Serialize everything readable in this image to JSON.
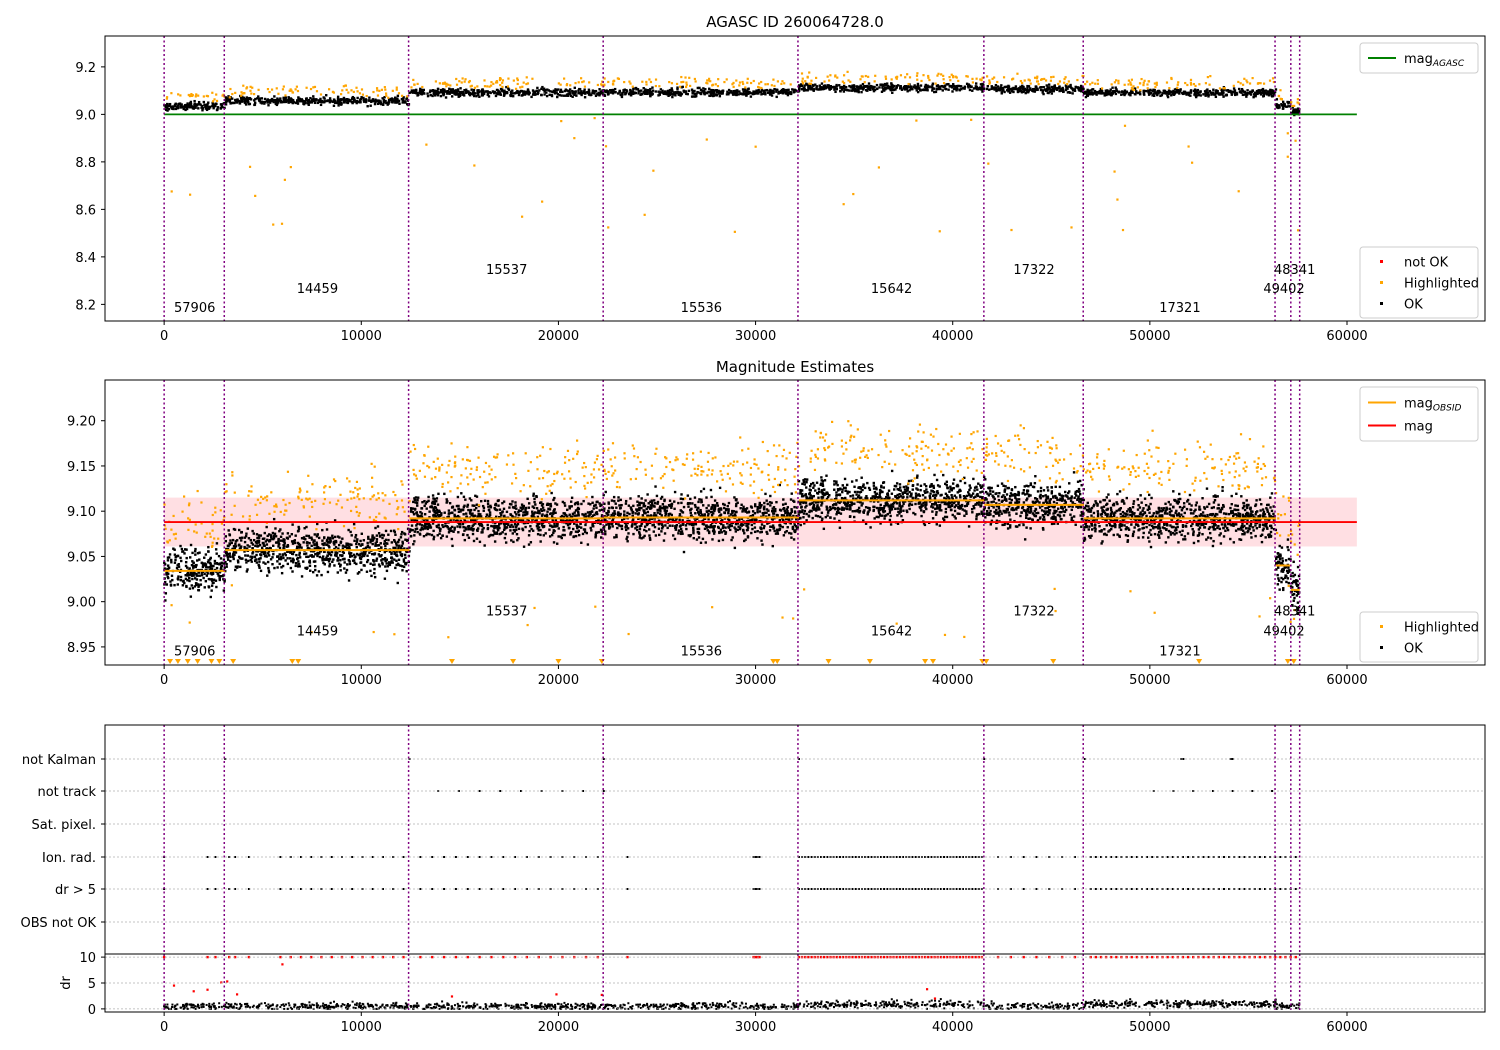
{
  "figure": {
    "title_top": "AGASC ID 260064728.0",
    "title_mid": "Magnitude Estimates"
  },
  "chart_data": [
    {
      "type": "scatter",
      "title": "AGASC ID 260064728.0",
      "xlim": [
        -3000,
        67000
      ],
      "ylim": [
        8.13,
        9.33
      ],
      "x_ticks": [
        0,
        10000,
        20000,
        30000,
        40000,
        50000,
        60000
      ],
      "y_ticks": [
        8.2,
        8.4,
        8.6,
        8.8,
        9.0,
        9.2
      ],
      "y_tick_labels": [
        "8.2",
        "8.4",
        "8.6",
        "8.8",
        "9.0",
        "9.2"
      ],
      "mag_agasc": 9.0,
      "mag_agasc_x_range": [
        0,
        60500
      ],
      "legend_upper": {
        "position": "upper right",
        "entries": [
          {
            "label": "mag",
            "sub": "AGASC",
            "color": "#008000",
            "kind": "line"
          }
        ]
      },
      "legend_lower": {
        "position": "lower right",
        "entries": [
          {
            "label": "not OK",
            "color": "#ff0000",
            "kind": "point"
          },
          {
            "label": "Highlighted",
            "color": "#ffa500",
            "kind": "point"
          },
          {
            "label": "OK",
            "color": "#000000",
            "kind": "point"
          }
        ]
      },
      "obsid_labels_y_levels": [
        8.35,
        8.27,
        8.19
      ]
    },
    {
      "type": "scatter",
      "title": "Magnitude Estimates",
      "xlim": [
        -3000,
        67000
      ],
      "ylim": [
        8.93,
        9.245
      ],
      "x_ticks": [
        0,
        10000,
        20000,
        30000,
        40000,
        50000,
        60000
      ],
      "y_ticks": [
        8.95,
        9.0,
        9.05,
        9.1,
        9.15,
        9.2
      ],
      "y_tick_labels": [
        "8.95",
        "9.00",
        "9.05",
        "9.10",
        "9.15",
        "9.20"
      ],
      "mag": 9.088,
      "mag_band": [
        9.061,
        9.115
      ],
      "legend_upper": {
        "position": "upper right",
        "entries": [
          {
            "label": "mag",
            "sub": "OBSID",
            "color": "#ffa500",
            "kind": "line"
          },
          {
            "label": "mag",
            "sub": "",
            "color": "#ff0000",
            "kind": "line"
          }
        ]
      },
      "legend_lower": {
        "position": "lower right",
        "entries": [
          {
            "label": "Highlighted",
            "color": "#ffa500",
            "kind": "point"
          },
          {
            "label": "OK",
            "color": "#000000",
            "kind": "point"
          }
        ]
      },
      "obsid_labels_y_levels": [
        8.99,
        8.968,
        8.946
      ]
    },
    {
      "type": "scatter",
      "title": "",
      "flag_rows": [
        "not Kalman",
        "not track",
        "Sat. pixel.",
        "Ion. rad.",
        "dr > 5",
        "OBS not OK"
      ]
    },
    {
      "type": "scatter",
      "title": "",
      "ylabel": "dr",
      "ylim": [
        -0.6,
        10.6
      ],
      "y_ticks": [
        0,
        5,
        10
      ],
      "x_ticks": [
        0,
        10000,
        20000,
        30000,
        40000,
        50000,
        60000
      ]
    }
  ],
  "observations": [
    {
      "obsid": "57906",
      "start": 0,
      "end": 3100,
      "mag": 9.034,
      "label_level": 2
    },
    {
      "obsid": "14459",
      "start": 3100,
      "end": 12450,
      "mag": 9.057,
      "label_level": 1
    },
    {
      "obsid": "15537",
      "start": 12450,
      "end": 22300,
      "mag": 9.092,
      "label_level": 0
    },
    {
      "obsid": "15536",
      "start": 22300,
      "end": 32200,
      "mag": 9.093,
      "label_level": 2
    },
    {
      "obsid": "15642",
      "start": 32200,
      "end": 41600,
      "mag": 9.112,
      "label_level": 1
    },
    {
      "obsid": "17322",
      "start": 41600,
      "end": 46650,
      "mag": 9.107,
      "label_level": 0
    },
    {
      "obsid": "17321",
      "start": 46650,
      "end": 56400,
      "mag": 9.092,
      "label_level": 2
    },
    {
      "obsid": "49402",
      "start": 56400,
      "end": 57150,
      "mag": 9.04,
      "label_level": 1
    },
    {
      "obsid": "48341",
      "start": 57150,
      "end": 57600,
      "mag": 9.013,
      "label_level": 0
    }
  ],
  "dividers_x": [
    0,
    3050,
    12400,
    22270,
    32150,
    41580,
    46620,
    56350,
    57150,
    57600
  ]
}
